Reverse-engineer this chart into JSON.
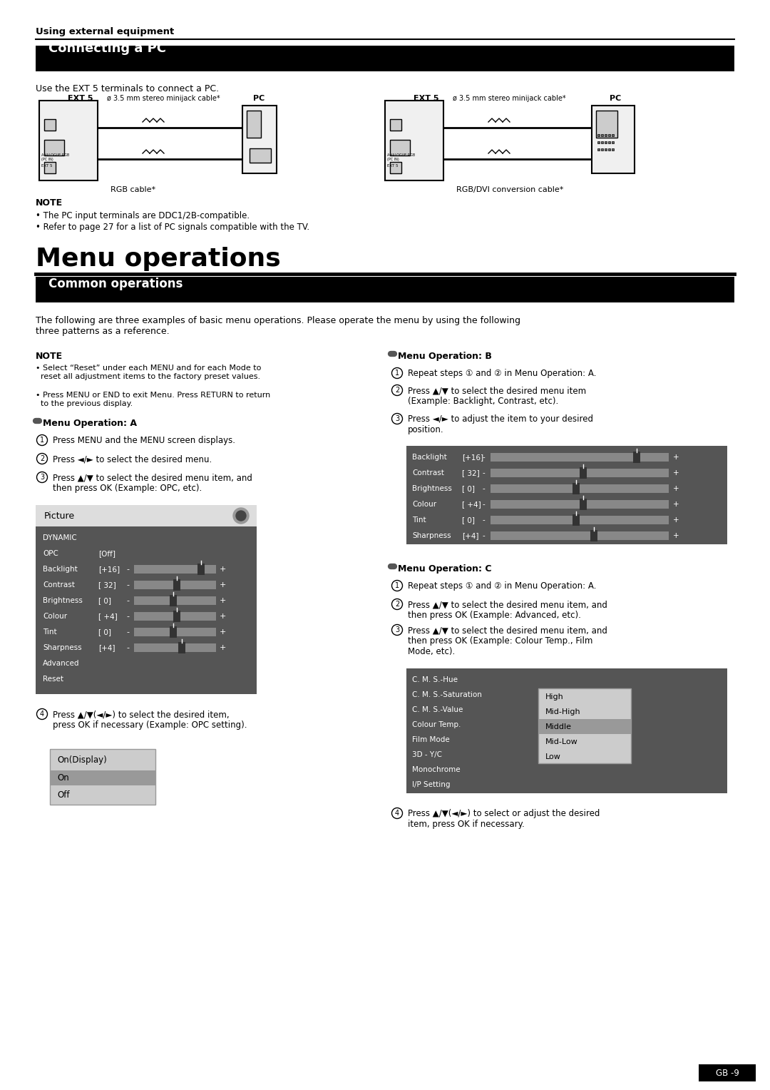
{
  "page_bg": "#ffffff",
  "top_section_label": "Using external equipment",
  "section1_title": "Connecting a PC",
  "section1_intro": "Use the EXT 5 terminals to connect a PC.",
  "note1_lines": [
    "The PC input terminals are DDC1/2B-compatible.",
    "Refer to page 27 for a list of PC signals compatible with the TV."
  ],
  "section2_title": "Menu operations",
  "section3_title": "Common operations",
  "common_intro": "The following are three examples of basic menu operations. Please operate the menu by using the following\nthree patterns as a reference.",
  "note2_title": "NOTE",
  "note2_lines": [
    "Select “Reset” under each MENU and for each Mode to\n  reset all adjustment items to the factory preset values.",
    "Press MENU or END to exit Menu. Press RETURN to return\n  to the previous display."
  ],
  "opA_title": "Menu Operation: A",
  "opA_steps": [
    "Press MENU and the MENU screen displays.",
    "Press ◄/► to select the desired menu.",
    "Press ▲/▼ to select the desired menu item, and\nthen press OK (Example: OPC, etc).",
    "Press ▲/▼(◄/►) to select the desired item,\npress OK if necessary (Example: OPC setting)."
  ],
  "opB_title": "Menu Operation: B",
  "opB_steps": [
    "Repeat steps ① and ② in Menu Operation: A.",
    "Press ▲/▼ to select the desired menu item\n(Example: Backlight, Contrast, etc).",
    "Press ◄/► to adjust the item to your desired\nposition."
  ],
  "opC_title": "Menu Operation: C",
  "opC_steps": [
    "Repeat steps ① and ② in Menu Operation: A.",
    "Press ▲/▼ to select the desired menu item, and\nthen press OK (Example: Advanced, etc).",
    "Press ▲/▼ to select the desired menu item, and\nthen press OK (Example: Colour Temp., Film\nMode, etc).",
    "Press ▲/▼(◄/►) to select or adjust the desired\nitem, press OK if necessary."
  ],
  "page_num": "GB -9",
  "header_bar_color": "#000000",
  "header_text_color": "#ffffff",
  "body_text_color": "#000000",
  "menu_bg_color": "#4a4a4a",
  "slider_color": "#888888"
}
